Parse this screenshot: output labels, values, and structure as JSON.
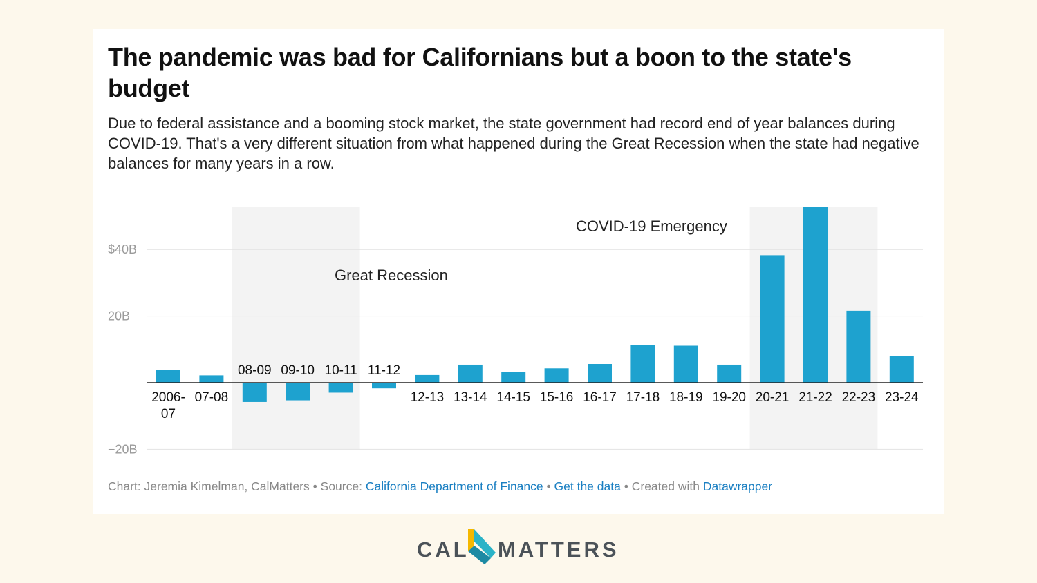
{
  "header": {
    "title": "The pandemic was bad for Californians but a boon to the state's budget",
    "subtitle": "Due to federal assistance and a booming stock market, the state government had record end of year balances during COVID-19. That's a very different situation from what happened during the Great Recession when the state had negative balances for many years in a row."
  },
  "chart_data": {
    "type": "bar",
    "categories": [
      "2006-07",
      "07-08",
      "08-09",
      "09-10",
      "10-11",
      "11-12",
      "12-13",
      "13-14",
      "14-15",
      "15-16",
      "16-17",
      "17-18",
      "18-19",
      "19-20",
      "20-21",
      "21-22",
      "22-23",
      "23-24"
    ],
    "category_lines": [
      [
        "2006-",
        "07"
      ],
      [
        "07-08"
      ],
      [
        "08-09"
      ],
      [
        "09-10"
      ],
      [
        "10-11"
      ],
      [
        "11-12"
      ],
      [
        "12-13"
      ],
      [
        "13-14"
      ],
      [
        "14-15"
      ],
      [
        "15-16"
      ],
      [
        "16-17"
      ],
      [
        "17-18"
      ],
      [
        "18-19"
      ],
      [
        "19-20"
      ],
      [
        "20-21"
      ],
      [
        "21-22"
      ],
      [
        "22-23"
      ],
      [
        "23-24"
      ]
    ],
    "values": [
      3.8,
      2.2,
      -5.8,
      -5.3,
      -3.0,
      -1.7,
      2.3,
      5.4,
      3.2,
      4.3,
      5.6,
      11.4,
      11.1,
      5.4,
      38.3,
      53,
      21.6,
      8.0
    ],
    "y_ticks": [
      {
        "value": 40,
        "label": "$40B"
      },
      {
        "value": 20,
        "label": "20B"
      },
      {
        "value": -20,
        "label": "−20B"
      }
    ],
    "ylim": [
      -20,
      53
    ],
    "bar_color": "#1ea2cf",
    "shade_color": "#f3f3f3",
    "grid": true,
    "shaded_ranges": [
      {
        "label": "Great Recession",
        "from": "08-09",
        "to": "10-11"
      },
      {
        "label": "COVID-19 Emergency",
        "from": "20-21",
        "to": "22-23"
      }
    ]
  },
  "footer": {
    "chart_credit": "Chart: Jeremia Kimelman, CalMatters",
    "source_label": "Source:",
    "source_link": "California Department of Finance",
    "get_data": "Get the data",
    "created_with": "Created with",
    "datawrapper": "Datawrapper",
    "separator": "•"
  },
  "logo": {
    "left": "CAL",
    "right": "MATTERS",
    "colors": {
      "text": "#4b5258",
      "yellow": "#f5b800",
      "teal": "#2bb3c7"
    }
  }
}
